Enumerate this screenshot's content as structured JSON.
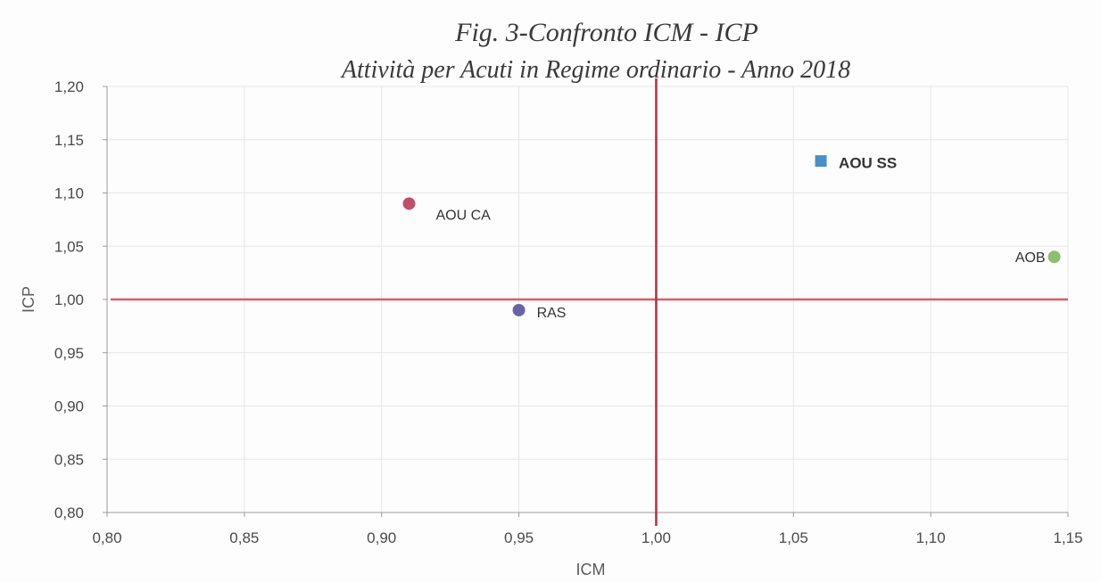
{
  "chart_data": {
    "type": "scatter",
    "title": "Fig. 3-Confronto ICM - ICP",
    "subtitle": "Attività per Acuti in Regime ordinario - Anno 2018",
    "xlabel": "ICM",
    "ylabel": "ICP",
    "xlim": [
      0.8,
      1.15
    ],
    "ylim": [
      0.8,
      1.2
    ],
    "x_ticks": [
      0.8,
      0.85,
      0.9,
      0.95,
      1.0,
      1.05,
      1.1,
      1.15
    ],
    "y_ticks": [
      0.8,
      0.85,
      0.9,
      0.95,
      1.0,
      1.05,
      1.1,
      1.15,
      1.2
    ],
    "x_tick_labels": [
      "0,80",
      "0,85",
      "0,90",
      "0,95",
      "1,00",
      "1,05",
      "1,10",
      "1,15"
    ],
    "y_tick_labels": [
      "0,80",
      "0,85",
      "0,90",
      "0,95",
      "1,00",
      "1,05",
      "1,10",
      "1,15",
      "1,20"
    ],
    "grid": true,
    "reference_lines": {
      "vertical_x": 1.0,
      "horizontal_y": 1.0,
      "colors": {
        "vertical": "#b03040",
        "horizontal": "#e05a6a"
      }
    },
    "points": [
      {
        "label": "AOU SS",
        "x": 1.06,
        "y": 1.13,
        "marker": "square",
        "color": "#4a90c8",
        "bold": true,
        "label_side": "right"
      },
      {
        "label": "AOU CA",
        "x": 0.91,
        "y": 1.09,
        "marker": "circle",
        "color": "#c0506a",
        "bold": false,
        "label_side": "right-below"
      },
      {
        "label": "AOB",
        "x": 1.145,
        "y": 1.04,
        "marker": "circle",
        "color": "#8cbf70",
        "bold": false,
        "label_side": "left"
      },
      {
        "label": "RAS",
        "x": 0.95,
        "y": 0.99,
        "marker": "circle",
        "color": "#6a62a8",
        "bold": false,
        "label_side": "right"
      }
    ]
  }
}
